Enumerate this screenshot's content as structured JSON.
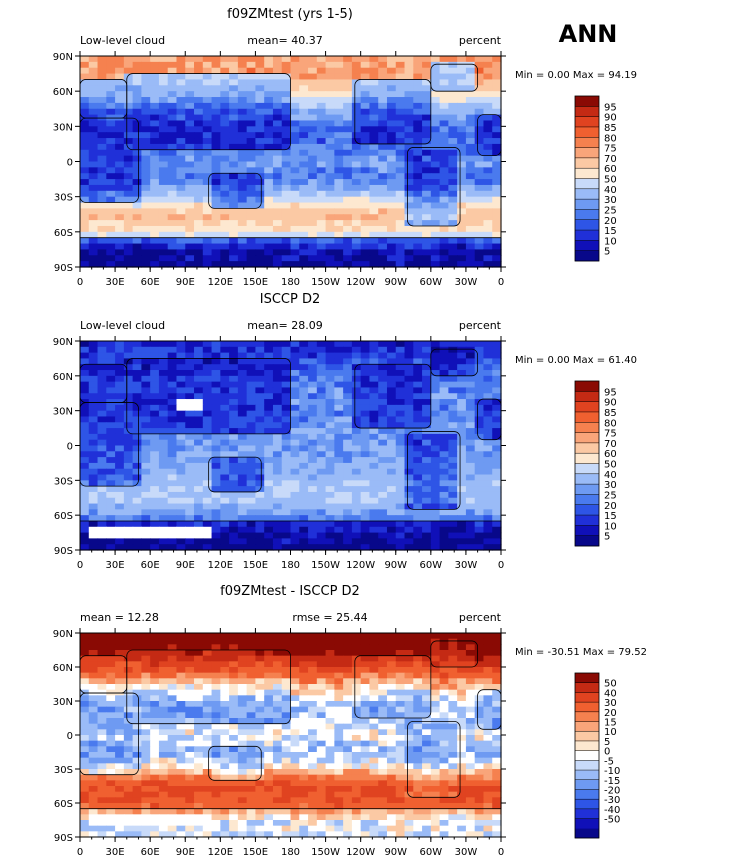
{
  "season_label": "ANN",
  "colors": {
    "scale_abs": [
      "#08088a",
      "#1010b8",
      "#2030d8",
      "#2e55e6",
      "#4a7aee",
      "#6e9af2",
      "#9abbf7",
      "#c8daf9",
      "#fde8d0",
      "#fbc9a4",
      "#f9a57a",
      "#f5814f",
      "#f06030",
      "#e04320",
      "#c42a14",
      "#8a0a04"
    ],
    "scale_diff": [
      "#08088a",
      "#1010b8",
      "#2030d8",
      "#2e55e6",
      "#4a7aee",
      "#6e9af2",
      "#9abbf7",
      "#c8daf9",
      "#ffffff",
      "#fde8d0",
      "#fbc9a4",
      "#f9a57a",
      "#f5814f",
      "#f06030",
      "#e04320",
      "#c42a14",
      "#8a0a04"
    ],
    "land_outline": "#000000",
    "missing": "#ffffff"
  },
  "chart_data": [
    {
      "type": "heatmap",
      "title": "f09ZMtest (yrs 1-5)",
      "left_string": "Low-level cloud",
      "center_string": "mean=  40.37",
      "right_string": "percent",
      "stats": "Min =    0.00 Max =   94.19",
      "min": 0.0,
      "max": 94.19,
      "mean": 40.37,
      "x_ticks": [
        "0",
        "30E",
        "60E",
        "90E",
        "120E",
        "150E",
        "180",
        "150W",
        "120W",
        "90W",
        "60W",
        "30W",
        "0"
      ],
      "y_ticks": [
        "90N",
        "60N",
        "30N",
        "0",
        "30S",
        "60S",
        "90S"
      ],
      "colorbar_labels": [
        "95",
        "90",
        "85",
        "80",
        "75",
        "70",
        "60",
        "50",
        "40",
        "30",
        "25",
        "20",
        "15",
        "10",
        "5"
      ],
      "latitudes": [
        -90,
        -75,
        -60,
        -45,
        -30,
        -15,
        0,
        15,
        30,
        45,
        60,
        75,
        90
      ],
      "zonal_profile": [
        8,
        12,
        55,
        70,
        40,
        22,
        28,
        20,
        20,
        35,
        60,
        75,
        72
      ],
      "scale": "abs"
    },
    {
      "type": "heatmap",
      "title": "ISCCP D2",
      "left_string": "Low-level cloud",
      "center_string": "mean=  28.09",
      "right_string": "percent",
      "stats": "Min =    0.00 Max =   61.40",
      "min": 0.0,
      "max": 61.4,
      "mean": 28.09,
      "x_ticks": [
        "0",
        "30E",
        "60E",
        "90E",
        "120E",
        "150E",
        "180",
        "150W",
        "120W",
        "90W",
        "60W",
        "30W",
        "0"
      ],
      "y_ticks": [
        "90N",
        "60N",
        "30N",
        "0",
        "30S",
        "60S",
        "90S"
      ],
      "colorbar_labels": [
        "95",
        "90",
        "85",
        "80",
        "75",
        "70",
        "60",
        "50",
        "40",
        "30",
        "25",
        "20",
        "15",
        "10",
        "5"
      ],
      "latitudes": [
        -90,
        -75,
        -60,
        -45,
        -30,
        -15,
        0,
        15,
        30,
        45,
        60,
        75,
        90
      ],
      "zonal_profile": [
        5,
        10,
        28,
        40,
        36,
        30,
        28,
        26,
        24,
        26,
        22,
        15,
        10
      ],
      "scale": "abs"
    },
    {
      "type": "heatmap",
      "title": "f09ZMtest - ISCCP D2",
      "left_string": "mean =  12.28",
      "center_string": "rmse =  25.44",
      "right_string": "percent",
      "stats": "Min = -30.51 Max =   79.52",
      "min": -30.51,
      "max": 79.52,
      "mean": 12.28,
      "rmse": 25.44,
      "x_ticks": [
        "0",
        "30E",
        "60E",
        "90E",
        "120E",
        "150E",
        "180",
        "150W",
        "120W",
        "90W",
        "60W",
        "30W",
        "0"
      ],
      "y_ticks": [
        "90N",
        "60N",
        "30N",
        "0",
        "30S",
        "60S",
        "90S"
      ],
      "colorbar_labels": [
        "50",
        "40",
        "30",
        "20",
        "15",
        "10",
        "5",
        "0",
        "-5",
        "-10",
        "-15",
        "-20",
        "-30",
        "-40",
        "-50"
      ],
      "latitudes": [
        -90,
        -75,
        -60,
        -45,
        -30,
        -15,
        0,
        15,
        30,
        45,
        60,
        75,
        90
      ],
      "zonal_profile": [
        5,
        5,
        30,
        32,
        5,
        -8,
        0,
        -6,
        -4,
        12,
        38,
        55,
        60
      ],
      "scale": "diff"
    }
  ]
}
